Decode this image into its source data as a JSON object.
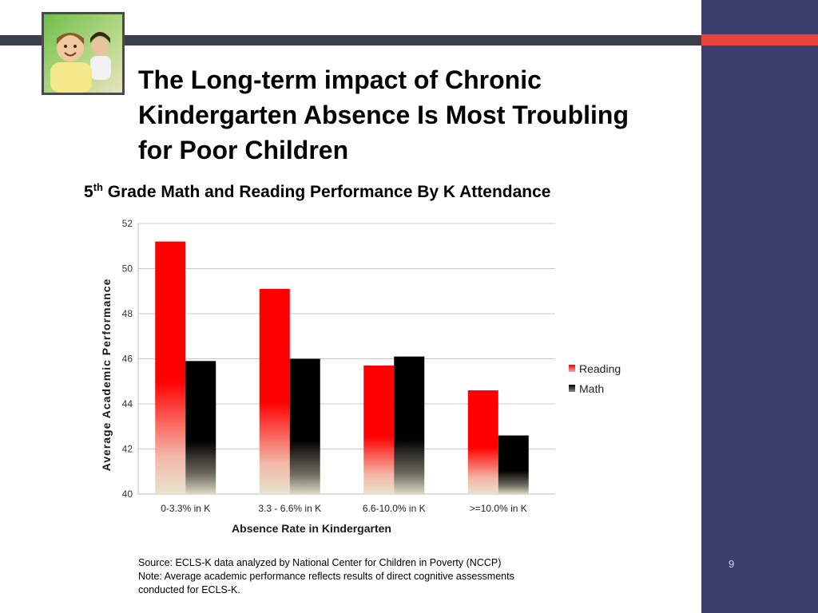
{
  "slide": {
    "title": "The Long-term impact of Chronic Kindergarten Absence Is Most Troubling for Poor Children",
    "page_number": "9",
    "source_lines": [
      "Source:  ECLS-K  data analyzed by National Center for Children in Poverty (NCCP)",
      "Note: Average academic performance reflects results of direct cognitive assessments",
      "conducted for ECLS-K."
    ],
    "colors": {
      "sidebar": "#3d3d6b",
      "accent": "#e8453c",
      "top_bar": "#3a3f4b"
    },
    "photo": "students-classroom-photo"
  },
  "chart_data": {
    "type": "bar",
    "title_main": "5",
    "title_sup": "th",
    "title_rest": " Grade Math and Reading Performance By K Attendance",
    "xlabel": "Absence Rate in Kindergarten",
    "ylabel": "Average Academic Performance",
    "categories": [
      "0-3.3% in K",
      "3.3 - 6.6% in K",
      "6.6-10.0% in K",
      ">=10.0% in K"
    ],
    "series": [
      {
        "name": "Reading",
        "values": [
          51.2,
          49.1,
          45.7,
          44.6
        ],
        "color": "#ff0000"
      },
      {
        "name": "Math",
        "values": [
          45.9,
          46.0,
          46.1,
          42.6
        ],
        "color": "#000000"
      }
    ],
    "ylim": [
      40,
      52
    ],
    "yticks": [
      40,
      42,
      44,
      46,
      48,
      50,
      52
    ],
    "grid": true,
    "legend": "right"
  }
}
